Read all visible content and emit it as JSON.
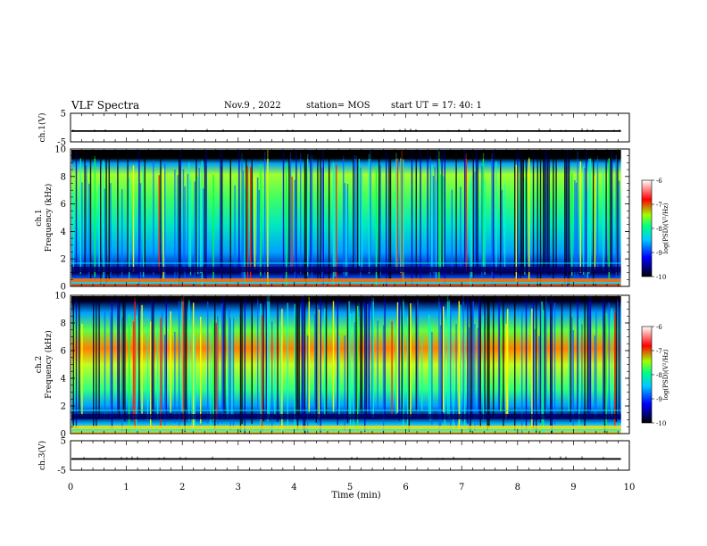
{
  "header": {
    "title": "VLF Spectra",
    "date": "Nov.9  , 2022",
    "station": "station= MOS",
    "start": "start  UT  =   17: 40: 1"
  },
  "chart_data": [
    {
      "type": "line",
      "name": "ch1-waveform",
      "ylabel": "ch.1(V)",
      "ylim": [
        -5,
        5
      ],
      "yticks": [
        "5",
        "-5"
      ],
      "xlim": [
        0,
        10
      ],
      "baseline": -1.2
    },
    {
      "type": "heatmap",
      "name": "ch1-spectrogram",
      "ylabel": "ch.1\nFrequency  (kHz)",
      "ylim": [
        0,
        10
      ],
      "yticks": [
        "0",
        "2",
        "4",
        "6",
        "8",
        "10"
      ],
      "xlim": [
        0,
        10
      ],
      "colorbar": {
        "label": "log(PSD)(V²/Hz)",
        "range": [
          -10,
          -6
        ],
        "ticks": [
          "-6",
          "-7",
          "-8",
          "-9",
          "-10"
        ]
      }
    },
    {
      "type": "heatmap",
      "name": "ch2-spectrogram",
      "ylabel": "ch.2\nFrequency  (kHz)",
      "ylim": [
        0,
        10
      ],
      "yticks": [
        "0",
        "2",
        "4",
        "6",
        "8",
        "10"
      ],
      "xlim": [
        0,
        10
      ],
      "colorbar": {
        "label": "log(PSD)(V²/Hz)",
        "range": [
          -10,
          -6
        ],
        "ticks": [
          "-6",
          "-7",
          "-8",
          "-9",
          "-10"
        ]
      }
    },
    {
      "type": "line",
      "name": "ch3-waveform",
      "ylabel": "ch.3(V)",
      "ylim": [
        -5,
        5
      ],
      "yticks": [
        "5",
        "-5"
      ],
      "xlim": [
        0,
        10
      ],
      "baseline": -1.2
    }
  ],
  "xaxis": {
    "label": "Time  (min)",
    "ticks": [
      "0",
      "1",
      "2",
      "3",
      "4",
      "5",
      "6",
      "7",
      "8",
      "9",
      "10"
    ]
  },
  "colors": {
    "scale": [
      "#000000",
      "#0000ff",
      "#00c8ff",
      "#00ff88",
      "#a0ff00",
      "#ff0000",
      "#ffffff"
    ]
  }
}
